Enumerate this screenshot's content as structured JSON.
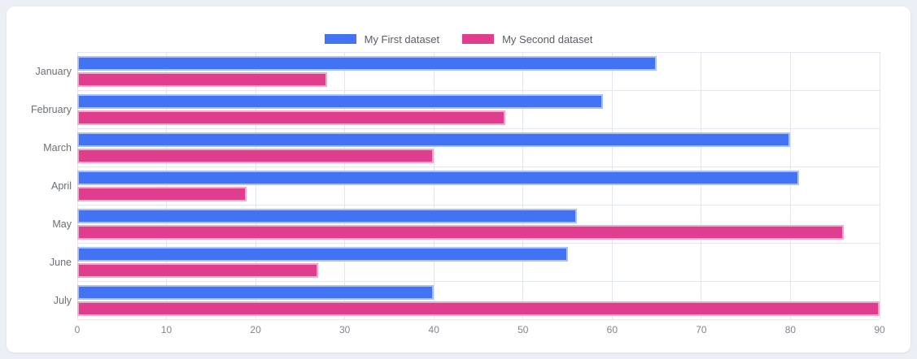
{
  "chart_data": {
    "type": "bar",
    "orientation": "horizontal",
    "title": "",
    "categories": [
      "January",
      "February",
      "March",
      "April",
      "May",
      "June",
      "July"
    ],
    "series": [
      {
        "name": "My First dataset",
        "color": "#4273f5",
        "border_color": "#aac1fa",
        "values": [
          65,
          59,
          80,
          81,
          56,
          55,
          40
        ]
      },
      {
        "name": "My Second dataset",
        "color": "#e03d8f",
        "border_color": "#f2a9ce",
        "values": [
          28,
          48,
          40,
          19,
          86,
          27,
          90
        ]
      }
    ],
    "xlim": [
      0,
      90
    ],
    "x_ticks": [
      0,
      10,
      20,
      30,
      40,
      50,
      60,
      70,
      80,
      90
    ],
    "grid": true,
    "legend_position": "top",
    "grid_color": "#e2e7ee",
    "background_color": "#ffffff",
    "page_background": "#edeff6"
  }
}
